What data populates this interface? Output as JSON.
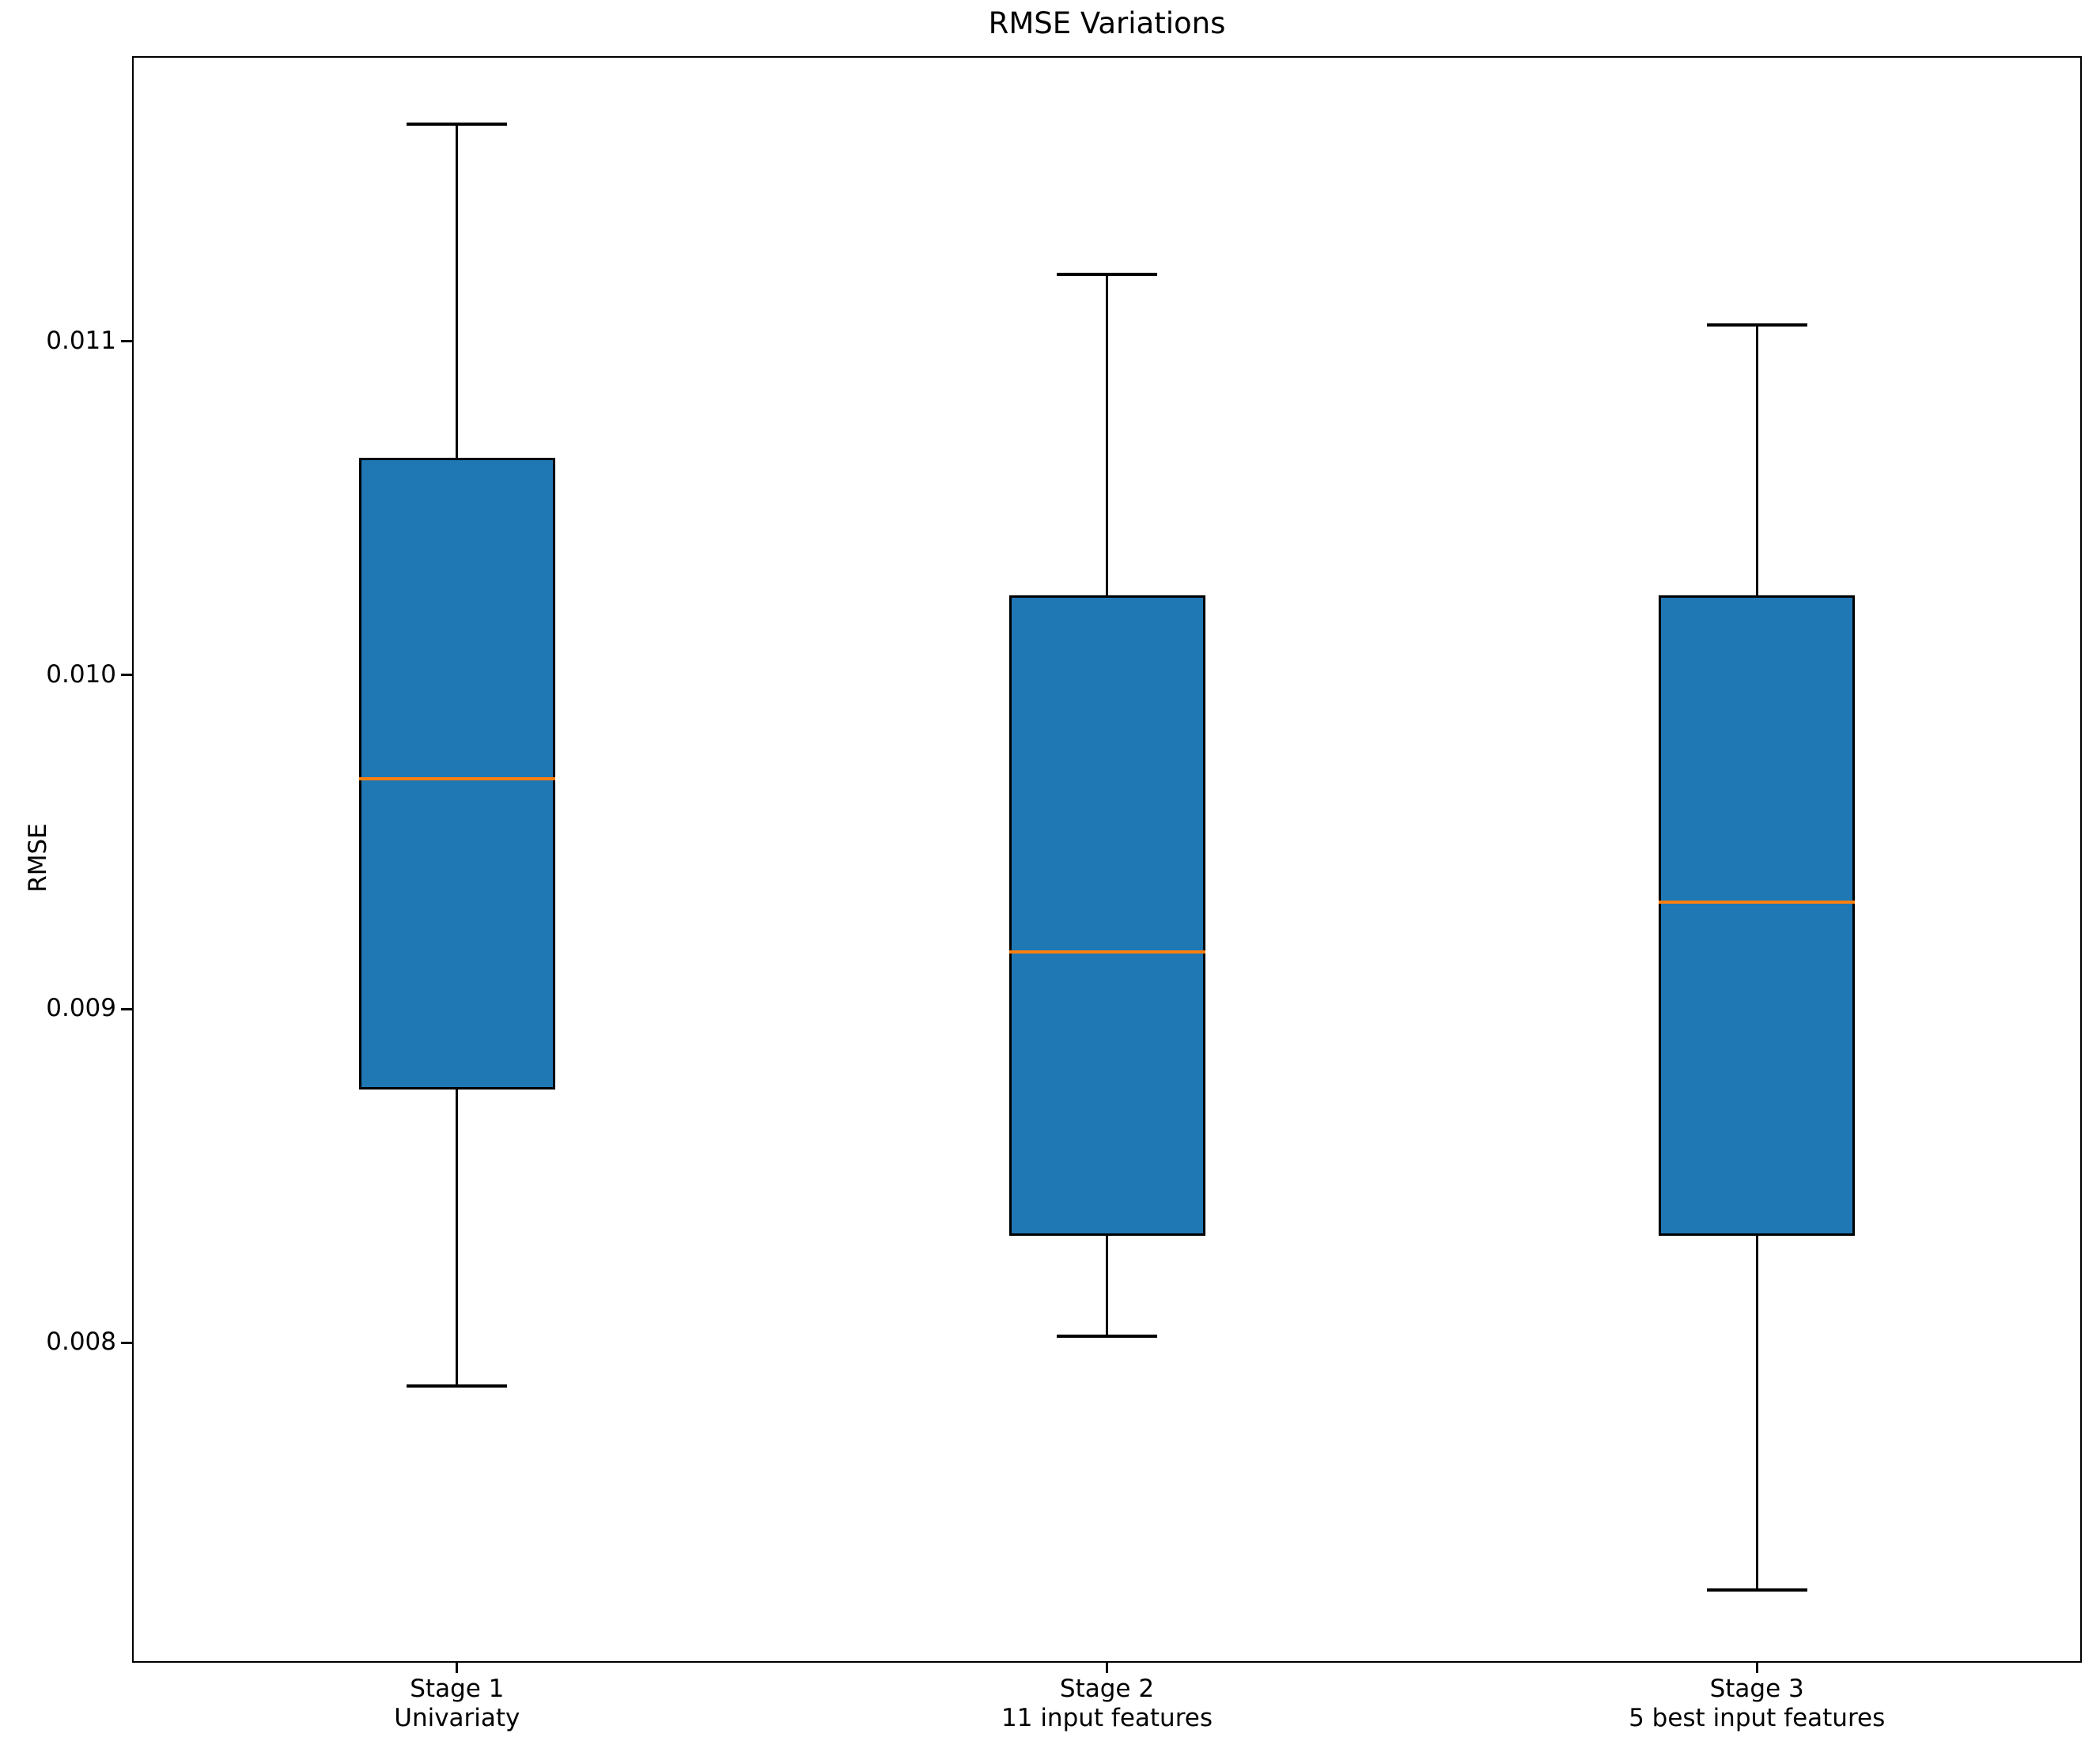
{
  "chart_data": {
    "type": "box",
    "title": "RMSE Variations",
    "xlabel": "",
    "ylabel": "RMSE",
    "ylim": [
      0.007042,
      0.011854
    ],
    "yticks": [
      0.008,
      0.009,
      0.01,
      0.011
    ],
    "ytick_labels": [
      "0.008",
      "0.009",
      "0.010",
      "0.011"
    ],
    "grid": false,
    "legend": null,
    "colors": {
      "box_fill": "#1f77b4",
      "box_edge": "#000000",
      "median": "#ff7f0e",
      "whisker": "#000000"
    },
    "categories": [
      {
        "label_line1": "Stage 1",
        "label_line2": "Univariaty"
      },
      {
        "label_line1": "Stage 2",
        "label_line2": "11 input features"
      },
      {
        "label_line1": "Stage 3",
        "label_line2": "5 best input features"
      }
    ],
    "boxes": [
      {
        "category": "Stage 1 Univariaty",
        "whisker_low": 0.00787,
        "q1": 0.00876,
        "median": 0.00969,
        "q3": 0.01065,
        "whisker_high": 0.01165
      },
      {
        "category": "Stage 2 11 input features",
        "whisker_low": 0.00802,
        "q1": 0.00832,
        "median": 0.00917,
        "q3": 0.01024,
        "whisker_high": 0.0112
      },
      {
        "category": "Stage 3 5 best input features",
        "whisker_low": 0.00726,
        "q1": 0.00832,
        "median": 0.00932,
        "q3": 0.01024,
        "whisker_high": 0.01105
      }
    ]
  }
}
